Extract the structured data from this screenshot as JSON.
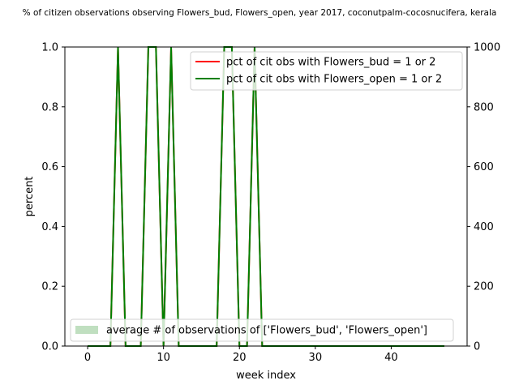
{
  "chart_data": {
    "type": "line",
    "title": "% of citizen observations observing Flowers_bud, Flowers_open, year 2017, coconutpalm-cocosnucifera, kerala",
    "xlabel": "week index",
    "ylabel": "percent",
    "xlim": [
      -3,
      50
    ],
    "ylim": [
      0,
      1
    ],
    "y2lim": [
      0,
      1000
    ],
    "x_ticks": [
      0,
      10,
      20,
      30,
      40
    ],
    "y_ticks": [
      0.0,
      0.2,
      0.4,
      0.6,
      0.8,
      1.0
    ],
    "y_tick_labels": [
      "0.0",
      "0.2",
      "0.4",
      "0.6",
      "0.8",
      "1.0"
    ],
    "y2_ticks": [
      0,
      200,
      400,
      600,
      800,
      1000
    ],
    "grid": false,
    "legend_upper_placement": "top-right",
    "legend_lower_placement": "bottom-left",
    "x": [
      0,
      1,
      2,
      3,
      4,
      5,
      6,
      7,
      8,
      9,
      10,
      11,
      12,
      13,
      14,
      15,
      16,
      17,
      18,
      19,
      20,
      21,
      22,
      23,
      24,
      25,
      26,
      27,
      28,
      29,
      30,
      31,
      32,
      33,
      34,
      35,
      36,
      37,
      38,
      39,
      40,
      41,
      42,
      43,
      44,
      45,
      46,
      47
    ],
    "series": [
      {
        "name": "pct of cit obs with Flowers_bud = 1 or 2",
        "color": "#ff0000",
        "values": [
          0,
          0,
          0,
          0,
          1,
          0,
          0,
          0,
          1,
          1,
          0,
          1,
          0,
          0,
          0,
          0,
          0,
          0,
          1,
          1,
          0,
          0,
          1,
          0,
          0,
          0,
          0,
          0,
          0,
          0,
          0,
          0,
          0,
          0,
          0,
          0,
          0,
          0,
          0,
          0,
          0,
          0,
          0,
          0,
          0,
          0,
          0,
          0
        ]
      },
      {
        "name": "pct of cit obs with Flowers_open = 1 or 2",
        "color": "#008000",
        "values": [
          0,
          0,
          0,
          0,
          1,
          0,
          0,
          0,
          1,
          1,
          0,
          1,
          0,
          0,
          0,
          0,
          0,
          0,
          1,
          1,
          0,
          0,
          1,
          0,
          0,
          0,
          0,
          0,
          0,
          0,
          0,
          0,
          0,
          0,
          0,
          0,
          0,
          0,
          0,
          0,
          0,
          0,
          0,
          0,
          0,
          0,
          0,
          0
        ]
      }
    ],
    "bar_series": {
      "name": "average # of observations of ['Flowers_bud', 'Flowers_open']",
      "color": "#c0dfc0",
      "values": [
        0,
        0,
        0,
        0,
        0,
        0,
        0,
        0,
        0,
        0,
        0,
        0,
        0,
        0,
        0,
        0,
        0,
        0,
        0,
        0,
        0,
        0,
        0,
        0,
        0,
        0,
        0,
        0,
        0,
        0,
        0,
        0,
        0,
        0,
        0,
        0,
        0,
        0,
        0,
        0,
        0,
        0,
        0,
        0,
        0,
        0,
        0,
        0
      ]
    }
  }
}
